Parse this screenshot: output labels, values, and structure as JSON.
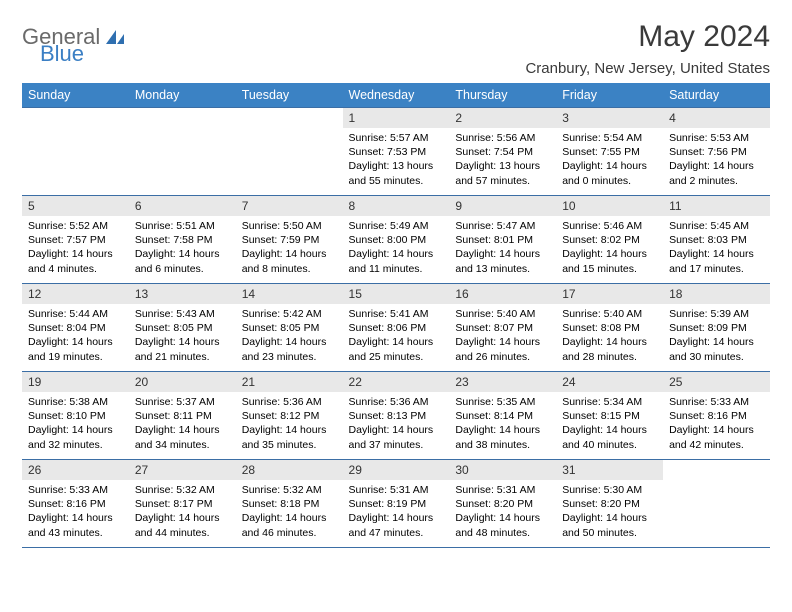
{
  "logo": {
    "word1": "General",
    "word2": "Blue"
  },
  "title": "May 2024",
  "location": "Cranbury, New Jersey, United States",
  "day_headers": [
    "Sunday",
    "Monday",
    "Tuesday",
    "Wednesday",
    "Thursday",
    "Friday",
    "Saturday"
  ],
  "colors": {
    "header_bg": "#3b82c4",
    "header_text": "#ffffff",
    "daynum_bg": "#e8e8e8",
    "border": "#3b6ea5",
    "logo_gray": "#6a6a6a",
    "logo_blue": "#3b7fc4"
  },
  "weeks": [
    [
      {
        "day": "",
        "lines": []
      },
      {
        "day": "",
        "lines": []
      },
      {
        "day": "",
        "lines": []
      },
      {
        "day": "1",
        "lines": [
          "Sunrise: 5:57 AM",
          "Sunset: 7:53 PM",
          "Daylight: 13 hours and 55 minutes."
        ]
      },
      {
        "day": "2",
        "lines": [
          "Sunrise: 5:56 AM",
          "Sunset: 7:54 PM",
          "Daylight: 13 hours and 57 minutes."
        ]
      },
      {
        "day": "3",
        "lines": [
          "Sunrise: 5:54 AM",
          "Sunset: 7:55 PM",
          "Daylight: 14 hours and 0 minutes."
        ]
      },
      {
        "day": "4",
        "lines": [
          "Sunrise: 5:53 AM",
          "Sunset: 7:56 PM",
          "Daylight: 14 hours and 2 minutes."
        ]
      }
    ],
    [
      {
        "day": "5",
        "lines": [
          "Sunrise: 5:52 AM",
          "Sunset: 7:57 PM",
          "Daylight: 14 hours and 4 minutes."
        ]
      },
      {
        "day": "6",
        "lines": [
          "Sunrise: 5:51 AM",
          "Sunset: 7:58 PM",
          "Daylight: 14 hours and 6 minutes."
        ]
      },
      {
        "day": "7",
        "lines": [
          "Sunrise: 5:50 AM",
          "Sunset: 7:59 PM",
          "Daylight: 14 hours and 8 minutes."
        ]
      },
      {
        "day": "8",
        "lines": [
          "Sunrise: 5:49 AM",
          "Sunset: 8:00 PM",
          "Daylight: 14 hours and 11 minutes."
        ]
      },
      {
        "day": "9",
        "lines": [
          "Sunrise: 5:47 AM",
          "Sunset: 8:01 PM",
          "Daylight: 14 hours and 13 minutes."
        ]
      },
      {
        "day": "10",
        "lines": [
          "Sunrise: 5:46 AM",
          "Sunset: 8:02 PM",
          "Daylight: 14 hours and 15 minutes."
        ]
      },
      {
        "day": "11",
        "lines": [
          "Sunrise: 5:45 AM",
          "Sunset: 8:03 PM",
          "Daylight: 14 hours and 17 minutes."
        ]
      }
    ],
    [
      {
        "day": "12",
        "lines": [
          "Sunrise: 5:44 AM",
          "Sunset: 8:04 PM",
          "Daylight: 14 hours and 19 minutes."
        ]
      },
      {
        "day": "13",
        "lines": [
          "Sunrise: 5:43 AM",
          "Sunset: 8:05 PM",
          "Daylight: 14 hours and 21 minutes."
        ]
      },
      {
        "day": "14",
        "lines": [
          "Sunrise: 5:42 AM",
          "Sunset: 8:05 PM",
          "Daylight: 14 hours and 23 minutes."
        ]
      },
      {
        "day": "15",
        "lines": [
          "Sunrise: 5:41 AM",
          "Sunset: 8:06 PM",
          "Daylight: 14 hours and 25 minutes."
        ]
      },
      {
        "day": "16",
        "lines": [
          "Sunrise: 5:40 AM",
          "Sunset: 8:07 PM",
          "Daylight: 14 hours and 26 minutes."
        ]
      },
      {
        "day": "17",
        "lines": [
          "Sunrise: 5:40 AM",
          "Sunset: 8:08 PM",
          "Daylight: 14 hours and 28 minutes."
        ]
      },
      {
        "day": "18",
        "lines": [
          "Sunrise: 5:39 AM",
          "Sunset: 8:09 PM",
          "Daylight: 14 hours and 30 minutes."
        ]
      }
    ],
    [
      {
        "day": "19",
        "lines": [
          "Sunrise: 5:38 AM",
          "Sunset: 8:10 PM",
          "Daylight: 14 hours and 32 minutes."
        ]
      },
      {
        "day": "20",
        "lines": [
          "Sunrise: 5:37 AM",
          "Sunset: 8:11 PM",
          "Daylight: 14 hours and 34 minutes."
        ]
      },
      {
        "day": "21",
        "lines": [
          "Sunrise: 5:36 AM",
          "Sunset: 8:12 PM",
          "Daylight: 14 hours and 35 minutes."
        ]
      },
      {
        "day": "22",
        "lines": [
          "Sunrise: 5:36 AM",
          "Sunset: 8:13 PM",
          "Daylight: 14 hours and 37 minutes."
        ]
      },
      {
        "day": "23",
        "lines": [
          "Sunrise: 5:35 AM",
          "Sunset: 8:14 PM",
          "Daylight: 14 hours and 38 minutes."
        ]
      },
      {
        "day": "24",
        "lines": [
          "Sunrise: 5:34 AM",
          "Sunset: 8:15 PM",
          "Daylight: 14 hours and 40 minutes."
        ]
      },
      {
        "day": "25",
        "lines": [
          "Sunrise: 5:33 AM",
          "Sunset: 8:16 PM",
          "Daylight: 14 hours and 42 minutes."
        ]
      }
    ],
    [
      {
        "day": "26",
        "lines": [
          "Sunrise: 5:33 AM",
          "Sunset: 8:16 PM",
          "Daylight: 14 hours and 43 minutes."
        ]
      },
      {
        "day": "27",
        "lines": [
          "Sunrise: 5:32 AM",
          "Sunset: 8:17 PM",
          "Daylight: 14 hours and 44 minutes."
        ]
      },
      {
        "day": "28",
        "lines": [
          "Sunrise: 5:32 AM",
          "Sunset: 8:18 PM",
          "Daylight: 14 hours and 46 minutes."
        ]
      },
      {
        "day": "29",
        "lines": [
          "Sunrise: 5:31 AM",
          "Sunset: 8:19 PM",
          "Daylight: 14 hours and 47 minutes."
        ]
      },
      {
        "day": "30",
        "lines": [
          "Sunrise: 5:31 AM",
          "Sunset: 8:20 PM",
          "Daylight: 14 hours and 48 minutes."
        ]
      },
      {
        "day": "31",
        "lines": [
          "Sunrise: 5:30 AM",
          "Sunset: 8:20 PM",
          "Daylight: 14 hours and 50 minutes."
        ]
      },
      {
        "day": "",
        "lines": []
      }
    ]
  ]
}
